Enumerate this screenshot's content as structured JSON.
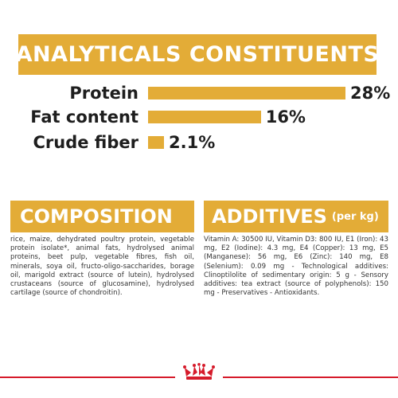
{
  "analytics": {
    "title": "ANALYTICALS CONSTITUENTS",
    "items": [
      {
        "label": "Protein",
        "value": "28%",
        "level": 28
      },
      {
        "label": "Fat content",
        "value": "16%",
        "level": 16
      },
      {
        "label": "Crude fiber",
        "value": "2.1%",
        "level": 2.1
      }
    ]
  },
  "composition": {
    "title": "COMPOSITION",
    "text": "rice, maize, dehydrated poultry protein, vegetable protein isolate*, animal fats, hydrolysed animal proteins, beet pulp, vegetable fibres, fish oil, minerals, soya oil, fructo-oligo-saccharides, borage oil, marigold extract (source of lutein), hydrolysed crustaceans (source of glucosamine), hydrolysed cartilage (source of chondroitin)."
  },
  "additives": {
    "title": "ADDITIVES",
    "subtitle": "(per kg)",
    "text": "Vitamin A: 30500 IU, Vitamin D3: 800 IU, E1 (Iron): 43 mg, E2 (Iodine): 4.3 mg, E4 (Copper): 13 mg, E5 (Manganese): 56 mg, E6 (Zinc): 140 mg, E8 (Selenium): 0.09 mg - Technological additives: Clinoptilolite of sedimentary origin: 5 g - Sensory additives: tea extract (source of polyphenols): 150 mg - Preservatives - Antioxidants."
  },
  "colors": {
    "accent": "#e3ac37",
    "brand_red": "#d61b2b"
  },
  "footer": {
    "logo_icon": "royal-canin-crown-logo"
  }
}
